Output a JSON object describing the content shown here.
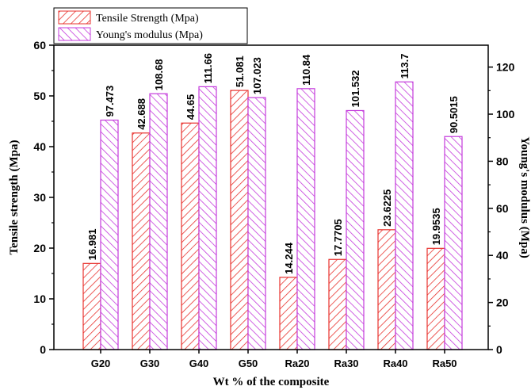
{
  "chart_data": {
    "type": "bar",
    "xlabel": "Wt % of the composite",
    "categories": [
      "G20",
      "G30",
      "G40",
      "G50",
      "Ra20",
      "Ra30",
      "Ra40",
      "Ra50"
    ],
    "series": [
      {
        "name": "Tensile Strength (Mpa)",
        "axis": "left",
        "values": [
          16.981,
          42.688,
          44.65,
          51.081,
          14.244,
          17.7705,
          23.6225,
          19.9535
        ],
        "labels": [
          "16.981",
          "42.688",
          "44.65",
          "51.081",
          "14.244",
          "17.7705",
          "23.6225",
          "19.9535"
        ],
        "color": "#e8322e",
        "pattern": "hatch"
      },
      {
        "name": "Young's modulus (Mpa)",
        "axis": "right",
        "values": [
          97.473,
          108.68,
          111.66,
          107.023,
          110.84,
          101.532,
          113.7,
          90.5015
        ],
        "labels": [
          "97.473",
          "108.68",
          "111.66",
          "107.023",
          "110.84",
          "101.532",
          "113.7",
          "90.5015"
        ],
        "color": "#c43bdc",
        "pattern": "hatch"
      }
    ],
    "y_left": {
      "label": "Tensile strength (Mpa)",
      "lim": [
        0,
        60
      ],
      "ticks": [
        0,
        10,
        20,
        30,
        40,
        50,
        60
      ]
    },
    "y_right": {
      "label": "Young's modulus (Mpa)",
      "lim": [
        0,
        129.3
      ],
      "ticks": [
        0,
        20,
        40,
        60,
        80,
        100,
        120
      ]
    },
    "legend_position": "top-left",
    "grid": false
  }
}
